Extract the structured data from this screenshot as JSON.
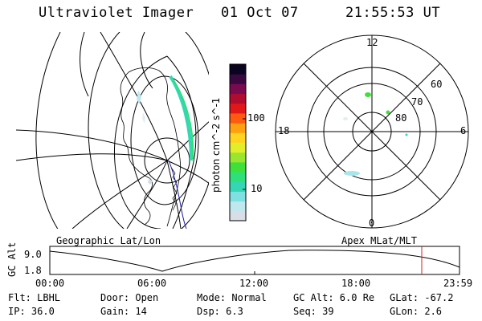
{
  "header": {
    "title": "Ultraviolet Imager",
    "date": "01 Oct 07",
    "time": "21:55:53 UT"
  },
  "colorbar": {
    "label": "photon cm^-2 s^-1",
    "ticks": [
      "100",
      "10"
    ],
    "colors": [
      "#d8dde6",
      "#bfe8ee",
      "#7ee0e0",
      "#35d6b4",
      "#2ee07a",
      "#3fe03a",
      "#9ae62e",
      "#e2ee2a",
      "#ffd420",
      "#ffa010",
      "#ff5a10",
      "#e01818",
      "#b00c30",
      "#7a0a50",
      "#3a0840",
      "#0a0420"
    ]
  },
  "polar_plot": {
    "mlt_labels": {
      "top": "12",
      "bottom": "0",
      "left": "18",
      "right": "6"
    },
    "lat_labels": [
      "60",
      "70",
      "80"
    ]
  },
  "orbit_panel": {
    "ylabel": "GC Alt",
    "yticks": [
      "9.0",
      "1.8"
    ],
    "left_caption": "Geographic Lat/Lon",
    "right_caption": "Apex MLat/MLT",
    "xticks": [
      "00:00",
      "06:00",
      "12:00",
      "18:00",
      "23:59"
    ]
  },
  "info": {
    "row1": [
      {
        "key": "filter",
        "text": "Flt: LBHL"
      },
      {
        "key": "door",
        "text": "Door: Open"
      },
      {
        "key": "mode",
        "text": "Mode: Normal"
      },
      {
        "key": "gc_alt",
        "text": "GC Alt: 6.0 Re"
      },
      {
        "key": "glat",
        "text": "GLat: -67.2"
      }
    ],
    "row2": [
      {
        "key": "ip",
        "text": "IP: 36.0"
      },
      {
        "key": "gain",
        "text": "Gain: 14"
      },
      {
        "key": "dsp",
        "text": "Dsp:    6.3"
      },
      {
        "key": "seq",
        "text": "Seq: 39"
      },
      {
        "key": "glon",
        "text": "GLon:   2.6"
      }
    ]
  }
}
